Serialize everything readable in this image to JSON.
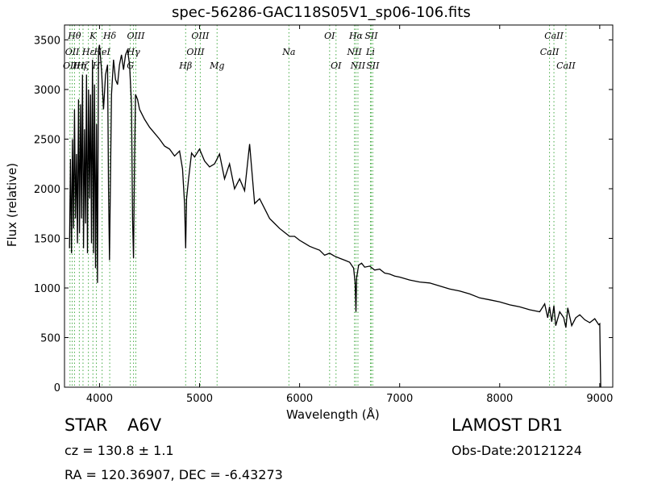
{
  "chart_data": {
    "type": "line",
    "title": "spec-56286-GAC118S05V1_sp06-106.fits",
    "xlabel": "Wavelength (Å)",
    "ylabel": "Flux (relative)",
    "xlim": [
      3650,
      9130
    ],
    "ylim": [
      0,
      3650
    ],
    "xticks": [
      4000,
      5000,
      6000,
      7000,
      8000,
      9000
    ],
    "yticks": [
      0,
      500,
      1000,
      1500,
      2000,
      2500,
      3000,
      3500
    ],
    "grid": false,
    "line_color": "#000000",
    "marker_color": "#44aa44",
    "series": [
      {
        "x": [
          3700,
          3710,
          3720,
          3730,
          3740,
          3750,
          3760,
          3770,
          3780,
          3790,
          3800,
          3810,
          3820,
          3830,
          3840,
          3850,
          3860,
          3870,
          3880,
          3890,
          3900,
          3910,
          3920,
          3930,
          3940,
          3950,
          3960,
          3970,
          3980,
          3990,
          4000,
          4020,
          4040,
          4060,
          4080,
          4090,
          4100,
          4110,
          4120,
          4140,
          4160,
          4180,
          4200,
          4220,
          4240,
          4260,
          4280,
          4300,
          4320,
          4330,
          4340,
          4350,
          4360,
          4380,
          4400,
          4450,
          4500,
          4550,
          4600,
          4650,
          4700,
          4750,
          4800,
          4830,
          4850,
          4861,
          4870,
          4890,
          4920,
          4950,
          5000,
          5050,
          5100,
          5150,
          5200,
          5250,
          5300,
          5350,
          5400,
          5450,
          5500,
          5550,
          5600,
          5650,
          5700,
          5750,
          5800,
          5850,
          5900,
          5950,
          6000,
          6050,
          6100,
          6150,
          6200,
          6250,
          6300,
          6350,
          6400,
          6450,
          6500,
          6540,
          6555,
          6563,
          6570,
          6590,
          6620,
          6650,
          6700,
          6750,
          6800,
          6850,
          6900,
          6950,
          7000,
          7100,
          7200,
          7300,
          7400,
          7500,
          7600,
          7700,
          7800,
          7900,
          8000,
          8100,
          8200,
          8300,
          8400,
          8450,
          8480,
          8498,
          8520,
          8542,
          8560,
          8600,
          8640,
          8662,
          8680,
          8720,
          8760,
          8800,
          8850,
          8900,
          8950,
          8990,
          9000,
          9005,
          9010
        ],
        "y": [
          1400,
          2300,
          1350,
          2500,
          1600,
          2800,
          1700,
          2350,
          1450,
          2900,
          1550,
          2850,
          1700,
          3150,
          1400,
          2600,
          1650,
          3150,
          1350,
          3000,
          1900,
          2950,
          1450,
          3300,
          1350,
          3050,
          1200,
          2650,
          1050,
          3400,
          3450,
          3200,
          2800,
          3150,
          3250,
          2000,
          1280,
          2150,
          2950,
          3300,
          3100,
          3050,
          3250,
          3350,
          3200,
          3350,
          3400,
          3250,
          2850,
          1700,
          1300,
          2300,
          2950,
          2900,
          2800,
          2700,
          2620,
          2560,
          2500,
          2430,
          2400,
          2330,
          2380,
          2200,
          1850,
          1400,
          1900,
          2100,
          2360,
          2320,
          2400,
          2280,
          2220,
          2250,
          2350,
          2100,
          2250,
          2000,
          2100,
          1980,
          2450,
          1850,
          1900,
          1800,
          1700,
          1650,
          1600,
          1560,
          1520,
          1520,
          1480,
          1450,
          1420,
          1400,
          1380,
          1330,
          1350,
          1320,
          1300,
          1280,
          1260,
          1200,
          1050,
          760,
          1100,
          1230,
          1250,
          1210,
          1220,
          1180,
          1190,
          1150,
          1140,
          1120,
          1110,
          1080,
          1060,
          1050,
          1020,
          990,
          970,
          940,
          900,
          880,
          860,
          830,
          810,
          780,
          760,
          840,
          700,
          810,
          660,
          820,
          620,
          760,
          700,
          600,
          800,
          620,
          700,
          730,
          680,
          650,
          690,
          630,
          640,
          300,
          0
        ]
      }
    ],
    "line_markers": [
      {
        "x": 3750,
        "label": "Hθ",
        "row": 0
      },
      {
        "x": 3798,
        "label": "Hη",
        "row": 2
      },
      {
        "x": 3835,
        "label": "Hζ",
        "row": 2
      },
      {
        "x": 3889,
        "label": "Hε",
        "row": 1
      },
      {
        "x": 3934,
        "label": "K",
        "row": 0
      },
      {
        "x": 3969,
        "label": "H",
        "row": 2
      },
      {
        "x": 4102,
        "label": "Hδ",
        "row": 0
      },
      {
        "x": 4026,
        "label": "HeI",
        "row": 1
      },
      {
        "x": 4308,
        "label": "G",
        "row": 2
      },
      {
        "x": 4340,
        "label": "Hγ",
        "row": 1
      },
      {
        "x": 4363,
        "label": "OIII",
        "row": 0
      },
      {
        "x": 3727,
        "label": "OII",
        "row": 1
      },
      {
        "x": 3705,
        "label": "OII",
        "row": 2
      },
      {
        "x": 4861,
        "label": "Hβ",
        "row": 2
      },
      {
        "x": 4959,
        "label": "OIII",
        "row": 1
      },
      {
        "x": 5007,
        "label": "OIII",
        "row": 0
      },
      {
        "x": 5175,
        "label": "Mg",
        "row": 2
      },
      {
        "x": 5893,
        "label": "Na",
        "row": 1
      },
      {
        "x": 6300,
        "label": "OI",
        "row": 0
      },
      {
        "x": 6364,
        "label": "OI",
        "row": 2
      },
      {
        "x": 6548,
        "label": "NII",
        "row": 1
      },
      {
        "x": 6563,
        "label": "Hα",
        "row": 0
      },
      {
        "x": 6583,
        "label": "NII",
        "row": 2
      },
      {
        "x": 6708,
        "label": "Li",
        "row": 1
      },
      {
        "x": 6716,
        "label": "SII",
        "row": 0
      },
      {
        "x": 6731,
        "label": "SII",
        "row": 2
      },
      {
        "x": 8498,
        "label": "CaII",
        "row": 1
      },
      {
        "x": 8542,
        "label": "CaII",
        "row": 0
      },
      {
        "x": 8662,
        "label": "CaII",
        "row": 2
      }
    ]
  },
  "info": {
    "class_label": "STAR",
    "subclass": "A6V",
    "survey": "LAMOST DR1",
    "cz": "cz = 130.8  ± 1.1",
    "obs_date": "Obs-Date:20121224",
    "radec": "RA = 120.36907, DEC = -6.43273"
  }
}
